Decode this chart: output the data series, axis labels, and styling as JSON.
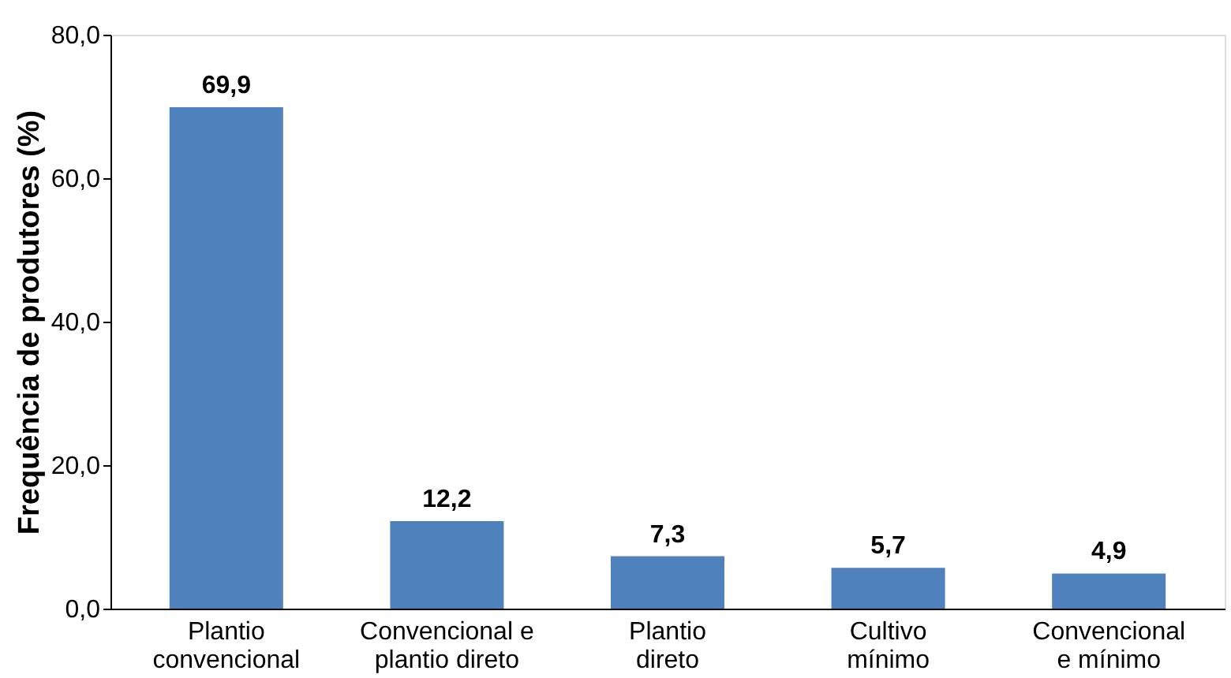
{
  "chart_data": {
    "type": "bar",
    "ylabel": "Frequência de produtores (%)",
    "categories": [
      "Plantio convencional",
      "Convencional e plantio direto",
      "Plantio direto",
      "Cultivo mínimo",
      "Convencional e mínimo"
    ],
    "values": [
      69.9,
      12.2,
      7.3,
      5.7,
      4.9
    ],
    "value_labels": [
      "69,9",
      "12,2",
      "7,3",
      "5,7",
      "4,9"
    ],
    "color": "#4f81bd",
    "ylim": [
      0,
      80
    ],
    "yticks": [
      {
        "value": 0,
        "label": "0,0"
      },
      {
        "value": 20,
        "label": "20,0"
      },
      {
        "value": 40,
        "label": "40,0"
      },
      {
        "value": 60,
        "label": "60,0"
      },
      {
        "value": 80,
        "label": "80,0"
      }
    ],
    "grid": false
  }
}
